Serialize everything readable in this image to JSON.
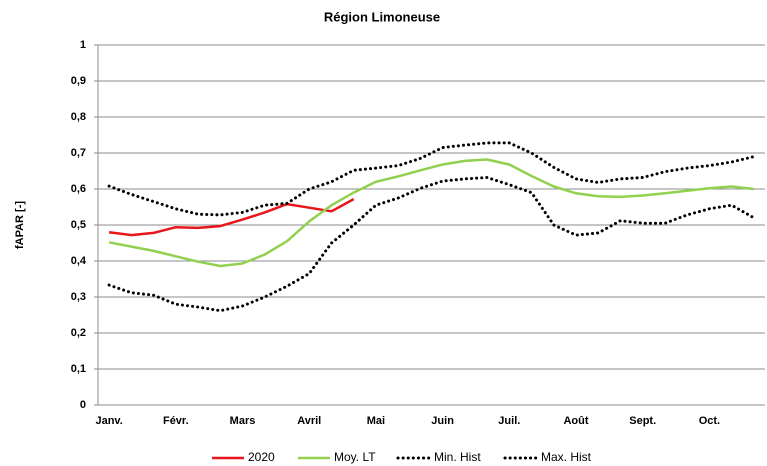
{
  "chart_data": {
    "type": "line",
    "title": "Région Limoneuse",
    "y_label": "fAPAR [-]",
    "categories": [
      "Janv.",
      null,
      null,
      "Févr.",
      null,
      null,
      "Mars",
      null,
      null,
      "Avril",
      null,
      null,
      "Mai",
      null,
      null,
      "Juin",
      null,
      null,
      "Juil.",
      null,
      null,
      "Août",
      null,
      null,
      "Sept.",
      null,
      null,
      "Oct.",
      null,
      null
    ],
    "series": [
      {
        "name": "2020",
        "color": "#e8161b",
        "style": "solid",
        "values": [
          0.48,
          0.472,
          0.478,
          0.494,
          0.492,
          0.497,
          0.515,
          0.535,
          0.558,
          0.548,
          0.538,
          0.572,
          null,
          null,
          null,
          null,
          null,
          null,
          null,
          null,
          null,
          null,
          null,
          null,
          null,
          null,
          null,
          null,
          null,
          null
        ]
      },
      {
        "name": "Moy. LT",
        "color": "#92d050",
        "style": "solid",
        "values": [
          0.452,
          0.44,
          0.428,
          0.413,
          0.398,
          0.386,
          0.393,
          0.418,
          0.455,
          0.51,
          0.555,
          0.59,
          0.62,
          0.635,
          0.652,
          0.668,
          0.678,
          0.682,
          0.668,
          0.636,
          0.607,
          0.588,
          0.58,
          0.578,
          0.582,
          0.588,
          0.595,
          0.602,
          0.607,
          0.6
        ]
      },
      {
        "name": "Min. Hist",
        "color": "#000000",
        "style": "dotted",
        "values": [
          0.333,
          0.312,
          0.305,
          0.28,
          0.272,
          0.262,
          0.275,
          0.3,
          0.33,
          0.365,
          0.45,
          0.5,
          0.555,
          0.575,
          0.602,
          0.622,
          0.628,
          0.632,
          0.612,
          0.59,
          0.5,
          0.472,
          0.478,
          0.512,
          0.505,
          0.505,
          0.528,
          0.545,
          0.555,
          0.52
        ]
      },
      {
        "name": "Max. Hist",
        "color": "#000000",
        "style": "dotted",
        "values": [
          0.608,
          0.585,
          0.565,
          0.545,
          0.53,
          0.528,
          0.535,
          0.555,
          0.56,
          0.6,
          0.62,
          0.652,
          0.658,
          0.665,
          0.685,
          0.715,
          0.722,
          0.728,
          0.728,
          0.7,
          0.66,
          0.628,
          0.618,
          0.628,
          0.632,
          0.648,
          0.658,
          0.665,
          0.675,
          0.69
        ]
      }
    ],
    "ylim": [
      0,
      1
    ],
    "yticks": [
      0,
      {
        "value": 0.1,
        "label": "0,1"
      },
      {
        "value": 0.2,
        "label": "0,2"
      },
      {
        "value": 0.3,
        "label": "0,3"
      },
      {
        "value": 0.4,
        "label": "0,4"
      },
      {
        "value": 0.5,
        "label": "0,5"
      },
      {
        "value": 0.6,
        "label": "0,6"
      },
      {
        "value": 0.7,
        "label": "0,7"
      },
      {
        "value": 0.8,
        "label": "0,8"
      },
      {
        "value": 0.9,
        "label": "0,9"
      },
      1
    ],
    "grid": true,
    "legend": "bottom"
  }
}
